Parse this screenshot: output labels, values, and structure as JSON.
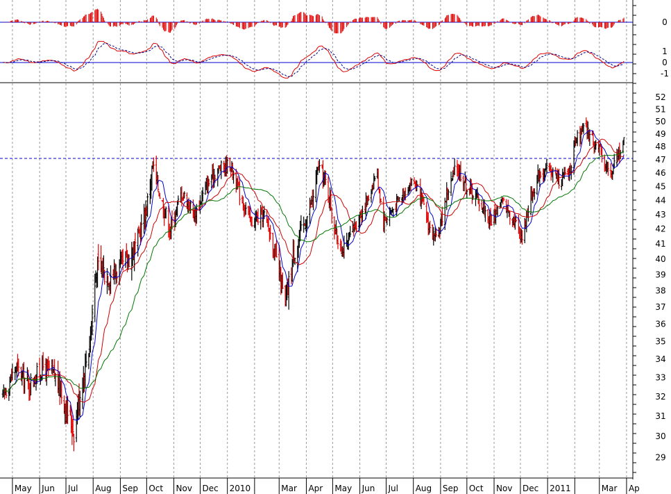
{
  "chart_data": {
    "type": "candlestick",
    "x_range": [
      "2009-04-20",
      "2011-04-05"
    ],
    "price_axis": {
      "range": [
        28.3,
        52.6
      ],
      "ticks": [
        29,
        30,
        31,
        32,
        33,
        34,
        35,
        36,
        37,
        38,
        39,
        40,
        41,
        42,
        43,
        44,
        45,
        46,
        47,
        48,
        49,
        50,
        51,
        52
      ]
    },
    "oscillator_axis": {
      "ticks": [
        "0"
      ]
    },
    "macd_axis": {
      "ticks": [
        "1",
        "0",
        "-1"
      ]
    },
    "reference_line": {
      "value": 47.1,
      "style": "dashed",
      "color": "#0000cc"
    },
    "x_ticks": [
      {
        "date": "2009-05-01",
        "label": "May"
      },
      {
        "date": "2009-06-01",
        "label": "Jun"
      },
      {
        "date": "2009-07-01",
        "label": "Jul"
      },
      {
        "date": "2009-08-01",
        "label": "Aug"
      },
      {
        "date": "2009-09-01",
        "label": "Sep"
      },
      {
        "date": "2009-10-01",
        "label": "Oct"
      },
      {
        "date": "2009-11-01",
        "label": "Nov"
      },
      {
        "date": "2009-12-01",
        "label": "Dec"
      },
      {
        "date": "2010-01-01",
        "label": "2010"
      },
      {
        "date": "2010-02-01",
        "label": ""
      },
      {
        "date": "2010-03-01",
        "label": "Mar"
      },
      {
        "date": "2010-04-01",
        "label": "Apr"
      },
      {
        "date": "2010-05-01",
        "label": "May"
      },
      {
        "date": "2010-06-01",
        "label": "Jun"
      },
      {
        "date": "2010-07-01",
        "label": "Jul"
      },
      {
        "date": "2010-08-01",
        "label": "Aug"
      },
      {
        "date": "2010-09-01",
        "label": "Sep"
      },
      {
        "date": "2010-10-01",
        "label": "Oct"
      },
      {
        "date": "2010-11-01",
        "label": "Nov"
      },
      {
        "date": "2010-12-01",
        "label": "Dec"
      },
      {
        "date": "2011-01-01",
        "label": "2011"
      },
      {
        "date": "2011-02-01",
        "label": ""
      },
      {
        "date": "2011-03-01",
        "label": "Mar"
      },
      {
        "date": "2011-04-01",
        "label": "Ap"
      }
    ],
    "close_path": [
      [
        "2009-04-20",
        32.0
      ],
      [
        "2009-05-05",
        33.6
      ],
      [
        "2009-05-20",
        32.6
      ],
      [
        "2009-06-05",
        33.6
      ],
      [
        "2009-06-20",
        33.0
      ],
      [
        "2009-07-01",
        31.5
      ],
      [
        "2009-07-10",
        30.3
      ],
      [
        "2009-07-18",
        32.5
      ],
      [
        "2009-07-28",
        35.0
      ],
      [
        "2009-08-05",
        39.5
      ],
      [
        "2009-08-20",
        39.0
      ],
      [
        "2009-09-05",
        39.6
      ],
      [
        "2009-09-20",
        41.0
      ],
      [
        "2009-10-01",
        43.5
      ],
      [
        "2009-10-08",
        46.5
      ],
      [
        "2009-10-18",
        44.0
      ],
      [
        "2009-10-28",
        42.0
      ],
      [
        "2009-11-10",
        44.6
      ],
      [
        "2009-11-25",
        43.0
      ],
      [
        "2009-12-08",
        45.0
      ],
      [
        "2009-12-20",
        46.2
      ],
      [
        "2010-01-04",
        46.7
      ],
      [
        "2010-01-15",
        44.5
      ],
      [
        "2010-01-28",
        42.5
      ],
      [
        "2010-02-12",
        43.0
      ],
      [
        "2010-02-20",
        41.5
      ],
      [
        "2010-03-01",
        39.0
      ],
      [
        "2010-03-08",
        37.0
      ],
      [
        "2010-03-18",
        40.5
      ],
      [
        "2010-03-28",
        42.0
      ],
      [
        "2010-04-08",
        44.0
      ],
      [
        "2010-04-15",
        46.5
      ],
      [
        "2010-04-25",
        45.0
      ],
      [
        "2010-05-05",
        41.5
      ],
      [
        "2010-05-15",
        40.5
      ],
      [
        "2010-05-28",
        42.5
      ],
      [
        "2010-06-10",
        44.0
      ],
      [
        "2010-06-20",
        46.2
      ],
      [
        "2010-06-28",
        42.5
      ],
      [
        "2010-07-10",
        43.5
      ],
      [
        "2010-07-20",
        44.5
      ],
      [
        "2010-08-01",
        45.5
      ],
      [
        "2010-08-10",
        44.0
      ],
      [
        "2010-08-20",
        42.0
      ],
      [
        "2010-08-28",
        41.0
      ],
      [
        "2010-09-08",
        44.5
      ],
      [
        "2010-09-20",
        46.5
      ],
      [
        "2010-10-01",
        45.0
      ],
      [
        "2010-10-15",
        44.0
      ],
      [
        "2010-10-28",
        42.5
      ],
      [
        "2010-11-10",
        44.0
      ],
      [
        "2010-11-25",
        42.5
      ],
      [
        "2010-12-03",
        41.5
      ],
      [
        "2010-12-12",
        44.0
      ],
      [
        "2010-12-22",
        46.0
      ],
      [
        "2011-01-05",
        46.2
      ],
      [
        "2011-01-15",
        45.5
      ],
      [
        "2011-01-25",
        46.0
      ],
      [
        "2011-02-03",
        48.5
      ],
      [
        "2011-02-12",
        49.5
      ],
      [
        "2011-02-22",
        48.5
      ],
      [
        "2011-03-05",
        47.2
      ],
      [
        "2011-03-15",
        45.8
      ],
      [
        "2011-03-22",
        47.5
      ],
      [
        "2011-03-28",
        48.3
      ]
    ],
    "volatility_path": [
      [
        "2009-04-20",
        0.55
      ],
      [
        "2009-06-01",
        0.6
      ],
      [
        "2009-07-10",
        0.75
      ],
      [
        "2009-08-10",
        0.95
      ],
      [
        "2009-10-10",
        0.8
      ],
      [
        "2009-12-01",
        0.6
      ],
      [
        "2010-02-15",
        0.6
      ],
      [
        "2010-03-10",
        0.9
      ],
      [
        "2010-04-15",
        0.75
      ],
      [
        "2010-06-15",
        0.55
      ],
      [
        "2010-08-01",
        0.5
      ],
      [
        "2010-09-15",
        0.7
      ],
      [
        "2010-11-15",
        0.5
      ],
      [
        "2011-01-15",
        0.6
      ],
      [
        "2011-03-25",
        0.65
      ]
    ],
    "series": [
      {
        "name": "",
        "color": "#0000cc",
        "period": 10
      },
      {
        "name": "",
        "color": "#cc0000",
        "period": 25
      },
      {
        "name": "",
        "color": "#007700",
        "period": 50
      }
    ],
    "colors": {
      "up": "#000000",
      "down": "#dd0000",
      "histogram": "#dd0000",
      "zero_line": "#0000cc",
      "grid": "#9a9a9a",
      "signal": "#000088"
    },
    "grid": true
  }
}
